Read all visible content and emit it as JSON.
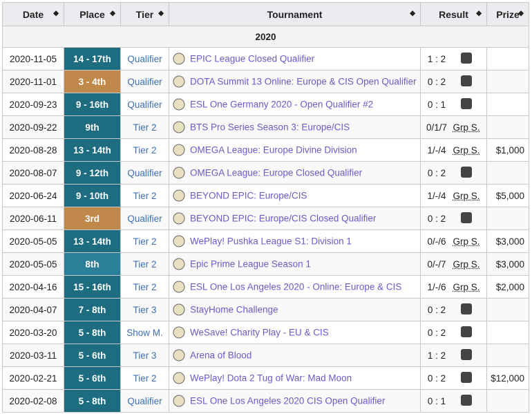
{
  "headers": {
    "date": "Date",
    "place": "Place",
    "tier": "Tier",
    "tournament": "Tournament",
    "result": "Result",
    "prize": "Prize"
  },
  "sort_icon": "◆",
  "year": "2020",
  "rows": [
    {
      "date": "2020-11-05",
      "place": "14 - 17th",
      "place_color": "dark",
      "tier": "Qualifier",
      "tournament": "EPIC League Closed Qualifier",
      "score": "1 : 2",
      "opponent": "team-logo-red",
      "prize": ""
    },
    {
      "date": "2020-11-01",
      "place": "3 - 4th",
      "place_color": "bronze",
      "tier": "Qualifier",
      "tournament": "DOTA Summit 13 Online: Europe & CIS Open Qualifier",
      "score": "0 : 2",
      "opponent": "team-logo-yellow",
      "prize": ""
    },
    {
      "date": "2020-09-23",
      "place": "9 - 16th",
      "place_color": "dark",
      "tier": "Qualifier",
      "tournament": "ESL One Germany 2020 - Open Qualifier #2",
      "score": "0 : 1",
      "opponent": "yk-logo",
      "prize": ""
    },
    {
      "date": "2020-09-22",
      "place": "9th",
      "place_color": "dark",
      "tier": "Tier 2",
      "tournament": "BTS Pro Series Season 3: Europe/CIS",
      "score": "0/1/7",
      "opponent": "Grp S.",
      "prize": ""
    },
    {
      "date": "2020-08-28",
      "place": "13 - 14th",
      "place_color": "dark",
      "tier": "Tier 2",
      "tournament": "OMEGA League: Europe Divine Division",
      "score": "1/-/4",
      "opponent": "Grp S.",
      "prize": "$1,000"
    },
    {
      "date": "2020-08-07",
      "place": "9 - 12th",
      "place_color": "dark",
      "tier": "Qualifier",
      "tournament": "OMEGA League: Europe Closed Qualifier",
      "score": "0 : 2",
      "opponent": "team-logo-black",
      "prize": ""
    },
    {
      "date": "2020-06-24",
      "place": "9 - 10th",
      "place_color": "dark",
      "tier": "Tier 2",
      "tournament": "BEYOND EPIC: Europe/CIS",
      "score": "1/-/4",
      "opponent": "Grp S.",
      "prize": "$5,000"
    },
    {
      "date": "2020-06-11",
      "place": "3rd",
      "place_color": "bronze",
      "tier": "Qualifier",
      "tournament": "BEYOND EPIC: Europe/CIS Closed Qualifier",
      "score": "0 : 2",
      "opponent": "team-logo-navy",
      "prize": ""
    },
    {
      "date": "2020-05-05",
      "place": "13 - 14th",
      "place_color": "dark",
      "tier": "Tier 2",
      "tournament": "WePlay! Pushka League S1: Division 1",
      "score": "0/-/6",
      "opponent": "Grp S.",
      "prize": "$3,000"
    },
    {
      "date": "2020-05-05",
      "place": "8th",
      "place_color": "blue",
      "tier": "Tier 2",
      "tournament": "Epic Prime League Season 1",
      "score": "0/-/7",
      "opponent": "Grp S.",
      "prize": "$3,000"
    },
    {
      "date": "2020-04-16",
      "place": "15 - 16th",
      "place_color": "dark",
      "tier": "Tier 2",
      "tournament": "ESL One Los Angeles 2020 - Online: Europe & CIS",
      "score": "1/-/6",
      "opponent": "Grp S.",
      "prize": "$2,000"
    },
    {
      "date": "2020-04-07",
      "place": "7 - 8th",
      "place_color": "dark",
      "tier": "Tier 3",
      "tournament": "StayHome Challenge",
      "score": "0 : 2",
      "opponent": "team-logo-v",
      "prize": ""
    },
    {
      "date": "2020-03-20",
      "place": "5 - 8th",
      "place_color": "dark",
      "tier": "Show M.",
      "tournament": "WeSave! Charity Play - EU & CIS",
      "score": "0 : 2",
      "opponent": "navi-logo",
      "prize": ""
    },
    {
      "date": "2020-03-11",
      "place": "5 - 6th",
      "place_color": "dark",
      "tier": "Tier 3",
      "tournament": "Arena of Blood",
      "score": "1 : 2",
      "opponent": "team-logo-skull",
      "prize": ""
    },
    {
      "date": "2020-02-21",
      "place": "5 - 6th",
      "place_color": "dark",
      "tier": "Tier 2",
      "tournament": "WePlay! Dota 2 Tug of War: Mad Moon",
      "score": "0 : 2",
      "opponent": "gambit-logo",
      "prize": "$12,000"
    },
    {
      "date": "2020-02-08",
      "place": "5 - 8th",
      "place_color": "dark",
      "tier": "Qualifier",
      "tournament": "ESL One Los Angeles 2020 CIS Open Qualifier",
      "score": "0 : 1",
      "opponent": "team-logo-vs",
      "prize": ""
    }
  ],
  "colors": {
    "place_dark": "#1e6c80",
    "place_bronze": "#c0884a",
    "place_blue": "#2a7f99",
    "link_purple": "#6a5acd",
    "tier_blue": "#3d6fb6",
    "header_bg": "#eaecf0"
  }
}
